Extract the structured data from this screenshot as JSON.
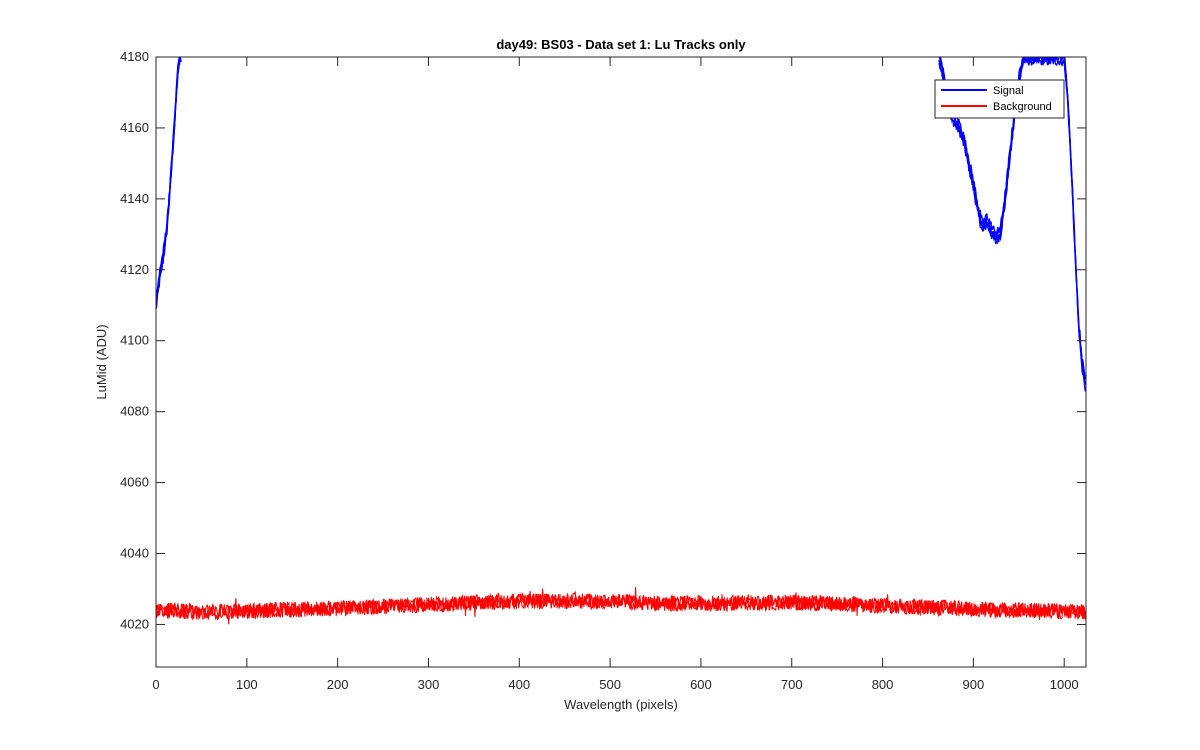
{
  "chart_data": {
    "type": "line",
    "title": "day49: BS03 - Data set 1: Lu Tracks only",
    "xlabel": "Wavelength (pixels)",
    "ylabel": "LuMid (ADU)",
    "xlim": [
      0,
      1024
    ],
    "ylim": [
      4008,
      4180
    ],
    "x_ticks": [
      0,
      100,
      200,
      300,
      400,
      500,
      600,
      700,
      800,
      900,
      1000
    ],
    "y_ticks": [
      4020,
      4040,
      4060,
      4080,
      4100,
      4120,
      4140,
      4160,
      4180
    ],
    "grid": false,
    "legend_position": "top-right",
    "series": [
      {
        "name": "Signal",
        "color": "#0000ff",
        "x": [
          0,
          4,
          8,
          12,
          16,
          20,
          24,
          26,
          28,
          862,
          866,
          870,
          875,
          880,
          885,
          890,
          895,
          900,
          905,
          910,
          915,
          920,
          925,
          930,
          935,
          940,
          945,
          950,
          955,
          960,
          1000,
          1004,
          1008,
          1012,
          1016,
          1020,
          1024
        ],
        "y": [
          4110,
          4118,
          4124,
          4132,
          4145,
          4160,
          4176,
          4180,
          4180,
          4180,
          4176,
          4170,
          4164,
          4162,
          4160,
          4156,
          4150,
          4144,
          4137,
          4132,
          4134,
          4131,
          4129,
          4131,
          4140,
          4152,
          4163,
          4173,
          4180,
          4180,
          4180,
          4168,
          4148,
          4125,
          4104,
          4093,
          4087
        ]
      },
      {
        "name": "Background",
        "color": "#ff0000",
        "x": [
          0,
          50,
          100,
          150,
          200,
          250,
          300,
          350,
          400,
          450,
          500,
          550,
          600,
          650,
          700,
          750,
          800,
          850,
          900,
          950,
          1000,
          1024
        ],
        "y": [
          4024,
          4023.5,
          4023.8,
          4024.2,
          4024.6,
          4025,
          4025.6,
          4026.1,
          4026.5,
          4026.6,
          4026.4,
          4026,
          4025.9,
          4026.1,
          4026.2,
          4025.8,
          4025.3,
          4024.8,
          4024.3,
          4024,
          4023.7,
          4023.5
        ],
        "noise_amplitude": 2.2
      }
    ]
  }
}
